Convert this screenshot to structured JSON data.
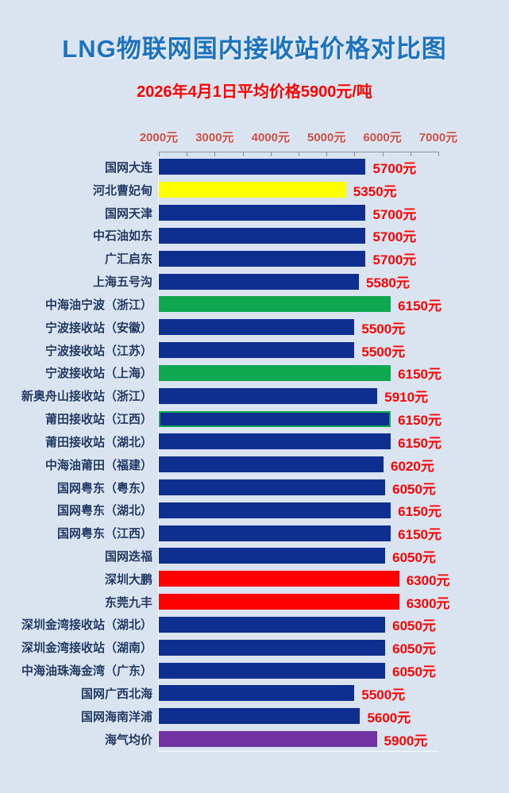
{
  "page": {
    "background": "#dae4f1"
  },
  "header": {
    "title": "LNG物联网国内接收站价格对比图",
    "title_color": "#1c72bc",
    "subtitle": "2026年4月1日平均价格5900元/吨",
    "subtitle_color": "#fe0000"
  },
  "chart_data": {
    "type": "bar",
    "orientation": "horizontal",
    "title": "LNG物联网国内接收站价格对比图",
    "subtitle": "2026年4月1日平均价格5900元/吨",
    "unit": "元",
    "xlim": [
      2000,
      7000
    ],
    "axis": {
      "min": 2000,
      "max": 7000,
      "major_tick_step": 1000,
      "minor_tick_step": 500,
      "tick_labels": [
        "2000元",
        "3000元",
        "4000元",
        "5000元",
        "6000元",
        "7000元"
      ],
      "tick_label_color": "#cc4b44",
      "line_color": "#8b8f96",
      "grid": false,
      "legend": "none"
    },
    "categories": [
      "国网大连",
      "河北曹妃甸",
      "国网天津",
      "中石油如东",
      "广汇启东",
      "上海五号沟",
      "中海油宁波（浙江）",
      "宁波接收站（安徽）",
      "宁波接收站（江苏）",
      "宁波接收站（上海）",
      "新奥舟山接收站（浙江）",
      "莆田接收站（江西）",
      "莆田接收站（湖北）",
      "中海油莆田（福建）",
      "国网粤东（粤东）",
      "国网粤东（湖北）",
      "国网粤东（江西）",
      "国网迭福",
      "深圳大鹏",
      "东莞九丰",
      "深圳金湾接收站（湖北）",
      "深圳金湾接收站（湖南）",
      "中海油珠海金湾（广东）",
      "国网广西北海",
      "国网海南洋浦",
      "海气均价"
    ],
    "values": [
      5700,
      5350,
      5700,
      5700,
      5700,
      5580,
      6150,
      5500,
      5500,
      6150,
      5910,
      6150,
      6150,
      6020,
      6050,
      6150,
      6150,
      6050,
      6300,
      6300,
      6050,
      6050,
      6050,
      5500,
      5600,
      5900
    ],
    "value_labels": [
      "5700元",
      "5350元",
      "5700元",
      "5700元",
      "5700元",
      "5580元",
      "6150元",
      "5500元",
      "5500元",
      "6150元",
      "5910元",
      "6150元",
      "6150元",
      "6020元",
      "6050元",
      "6150元",
      "6150元",
      "6050元",
      "6300元",
      "6300元",
      "6050元",
      "6050元",
      "6050元",
      "5500元",
      "5600元",
      "5900元"
    ],
    "bar_color_keys": [
      "navy",
      "yellow",
      "navy",
      "navy",
      "navy",
      "navy",
      "green",
      "navy",
      "navy",
      "green",
      "navy",
      "navy",
      "navy",
      "navy",
      "navy",
      "navy",
      "navy",
      "navy",
      "red",
      "red",
      "navy",
      "navy",
      "navy",
      "navy",
      "navy",
      "purple"
    ],
    "bordered_rows": [
      11
    ],
    "border_color": "#0fa850",
    "colors": {
      "navy": "#0e2f90",
      "yellow": "#fdff00",
      "green": "#0fa850",
      "red": "#fe0000",
      "purple": "#7133a1"
    },
    "category_label_color": "#1f3864",
    "value_label_color": "#fe0000"
  }
}
